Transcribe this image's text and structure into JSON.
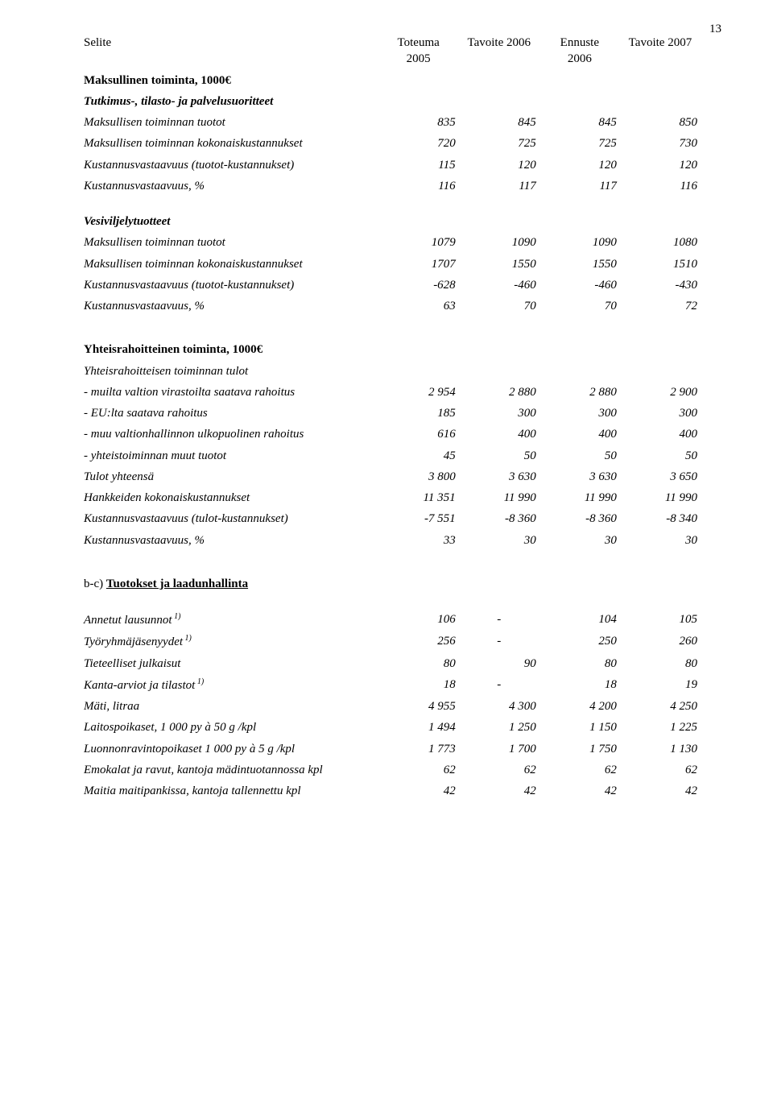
{
  "pageNumber": "13",
  "header": {
    "colLabel": "Selite",
    "c1a": "Toteuma",
    "c1b": "2005",
    "c2a": "Tavoite 2006",
    "c3a": "Ennuste",
    "c3b": "2006",
    "c4a": "Tavoite 2007"
  },
  "sec1": {
    "title": "Maksullinen toiminta, 1000€",
    "sub": "Tutkimus-, tilasto- ja palvelusuoritteet",
    "rows": [
      {
        "l": "Maksullisen toiminnan tuotot",
        "v": [
          "835",
          "845",
          "845",
          "850"
        ]
      },
      {
        "l": "Maksullisen toiminnan kokonaiskustannukset",
        "v": [
          "720",
          "725",
          "725",
          "730"
        ]
      },
      {
        "l": "Kustannusvastaavuus (tuotot-kustannukset)",
        "v": [
          "115",
          "120",
          "120",
          "120"
        ]
      },
      {
        "l": "Kustannusvastaavuus, %",
        "v": [
          "116",
          "117",
          "117",
          "116"
        ]
      }
    ]
  },
  "sec2": {
    "title": "Vesiviljelytuotteet",
    "rows": [
      {
        "l": "Maksullisen toiminnan tuotot",
        "v": [
          "1079",
          "1090",
          "1090",
          "1080"
        ]
      },
      {
        "l": "Maksullisen toiminnan kokonaiskustannukset",
        "v": [
          "1707",
          "1550",
          "1550",
          "1510"
        ]
      },
      {
        "l": "Kustannusvastaavuus (tuotot-kustannukset)",
        "v": [
          "-628",
          "-460",
          "-460",
          "-430"
        ]
      },
      {
        "l": "Kustannusvastaavuus, %",
        "v": [
          "63",
          "70",
          "70",
          "72"
        ]
      }
    ]
  },
  "sec3": {
    "title": "Yhteisrahoitteinen toiminta, 1000€",
    "sub": "Yhteisrahoitteisen toiminnan tulot",
    "rows": [
      {
        "l": "- muilta valtion virastoilta saatava rahoitus",
        "v": [
          "2 954",
          "2 880",
          "2 880",
          "2 900"
        ]
      },
      {
        "l": "- EU:lta saatava rahoitus",
        "v": [
          "185",
          "300",
          "300",
          "300"
        ]
      },
      {
        "l": "- muu valtionhallinnon ulkopuolinen rahoitus",
        "v": [
          "616",
          "400",
          "400",
          "400"
        ]
      },
      {
        "l": "- yhteistoiminnan muut tuotot",
        "v": [
          "45",
          "50",
          "50",
          "50"
        ]
      },
      {
        "l": "Tulot yhteensä",
        "v": [
          "3 800",
          "3 630",
          "3 630",
          "3 650"
        ]
      },
      {
        "l": "Hankkeiden kokonaiskustannukset",
        "v": [
          "11 351",
          "11 990",
          "11 990",
          "11 990"
        ]
      },
      {
        "l": "Kustannusvastaavuus (tulot-kustannukset)",
        "v": [
          "-7 551",
          "-8 360",
          "-8 360",
          "-8 340"
        ]
      },
      {
        "l": "Kustannusvastaavuus, %",
        "v": [
          "33",
          "30",
          "30",
          "30"
        ]
      }
    ]
  },
  "sec4": {
    "prefix": "b-c) ",
    "title": "Tuotokset ja laadunhallinta",
    "rows": [
      {
        "l": "Annetut lausunnot",
        "sup": "1)",
        "v": [
          "106",
          "-",
          "104",
          "105"
        ]
      },
      {
        "l": "Työryhmäjäsenyydet",
        "sup": "1)",
        "v": [
          "256",
          "-",
          "250",
          "260"
        ]
      },
      {
        "l": "Tieteelliset julkaisut",
        "v": [
          "80",
          "90",
          "80",
          "80"
        ]
      },
      {
        "l": "Kanta-arviot ja tilastot",
        "sup": "1)",
        "v": [
          "18",
          "-",
          "18",
          "19"
        ]
      },
      {
        "l": "Mäti, litraa",
        "v": [
          "4 955",
          "4 300",
          "4 200",
          "4 250"
        ]
      },
      {
        "l": "Laitospoikaset,  1 000 py à 50 g /kpl",
        "v": [
          "1 494",
          "1 250",
          "1 150",
          "1 225"
        ]
      },
      {
        "l": "Luonnonravintopoikaset 1 000 py à 5 g /kpl",
        "v": [
          "1 773",
          "1 700",
          "1 750",
          "1 130"
        ]
      },
      {
        "l": "Emokalat ja ravut, kantoja mädintuotannossa kpl",
        "v": [
          "62",
          "62",
          "62",
          "62"
        ]
      },
      {
        "l": "Maitia maitipankissa, kantoja tallennettu kpl",
        "v": [
          "42",
          "42",
          "42",
          "42"
        ]
      }
    ]
  }
}
